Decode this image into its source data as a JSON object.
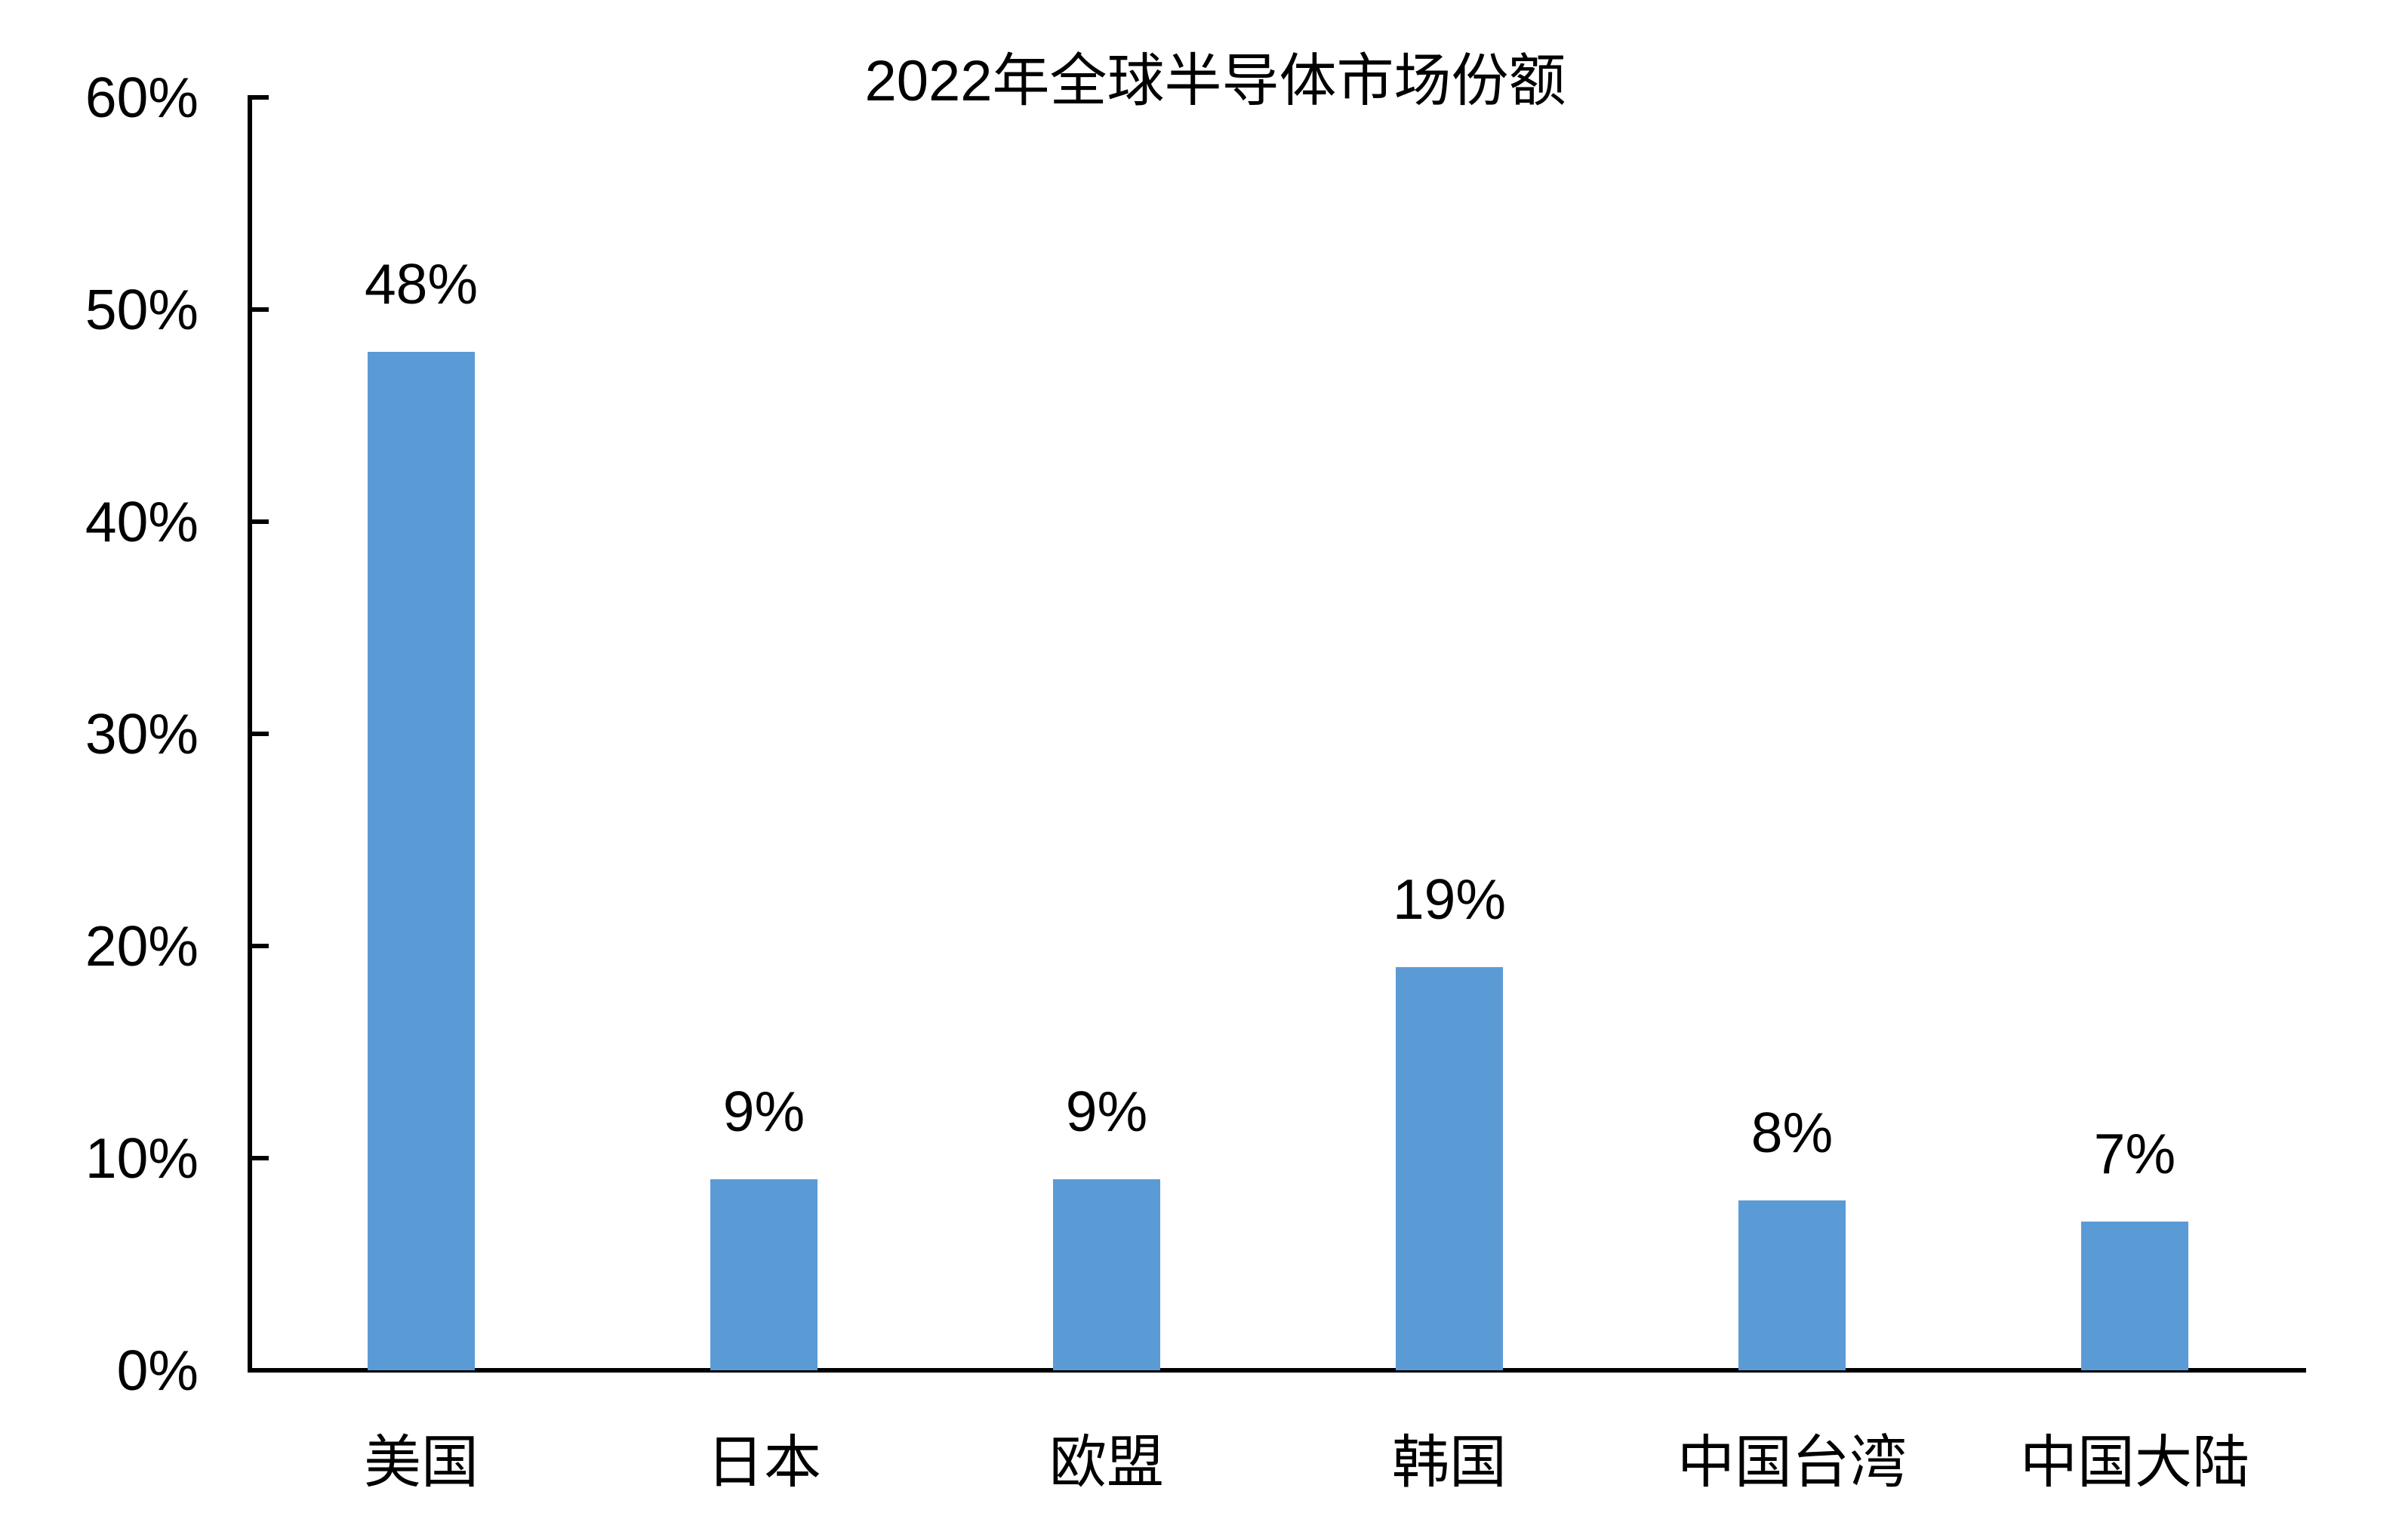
{
  "chart_data": {
    "type": "bar",
    "title": "2022年全球半导体市场份额",
    "categories": [
      "美国",
      "日本",
      "欧盟",
      "韩国",
      "中国台湾",
      "中国大陆"
    ],
    "values": [
      48,
      9,
      9,
      19,
      8,
      7
    ],
    "data_labels": [
      "48%",
      "9%",
      "9%",
      "19%",
      "8%",
      "7%"
    ],
    "y_tick_labels": [
      "0%",
      "10%",
      "20%",
      "30%",
      "40%",
      "50%",
      "60%"
    ],
    "ylim": [
      0,
      60
    ],
    "y_tick_step": 10,
    "xlabel": "",
    "ylabel": "",
    "grid": false,
    "legend": "none",
    "bar_color": "#5B9BD5",
    "axis_color": "#000000",
    "text_color": "#000000",
    "background_color": "#FFFFFF"
  }
}
